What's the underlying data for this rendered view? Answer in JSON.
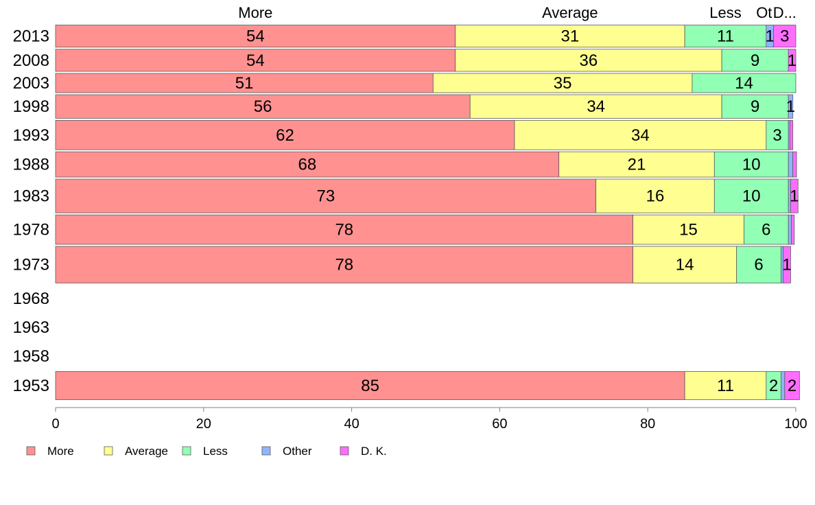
{
  "chart_data": {
    "type": "bar",
    "orientation": "horizontal",
    "stacked": true,
    "header_labels": [
      "More",
      "Average",
      "Less",
      "Ot",
      "D..."
    ],
    "categories": [
      "2013",
      "2008",
      "2003",
      "1998",
      "1993",
      "1988",
      "1983",
      "1978",
      "1973",
      "1968",
      "1963",
      "1958",
      "1953"
    ],
    "series": [
      {
        "name": "More",
        "color": "#FF9191",
        "values": [
          54,
          54,
          51,
          56,
          62,
          68,
          73,
          78,
          78,
          null,
          null,
          null,
          85
        ]
      },
      {
        "name": "Average",
        "color": "#FFFF91",
        "values": [
          31,
          36,
          35,
          34,
          34,
          21,
          16,
          15,
          14,
          null,
          null,
          null,
          11
        ]
      },
      {
        "name": "Less",
        "color": "#91FFB4",
        "values": [
          11,
          9,
          14,
          9,
          3,
          10,
          10,
          6,
          6,
          null,
          null,
          null,
          2
        ]
      },
      {
        "name": "Other",
        "color": "#91B4FF",
        "values": [
          1,
          0,
          0,
          0.6,
          0.2,
          0.6,
          0.3,
          0.4,
          0.3,
          null,
          null,
          null,
          0.5
        ]
      },
      {
        "name": "D. K.",
        "color": "#FF6DFF",
        "values": [
          3,
          1,
          0,
          0,
          0.4,
          0.5,
          1,
          0.4,
          1,
          null,
          null,
          null,
          2
        ]
      }
    ],
    "segment_labels": [
      [
        "54",
        "31",
        "11",
        "1",
        "3"
      ],
      [
        "54",
        "36",
        "9",
        "",
        "1"
      ],
      [
        "51",
        "35",
        "14",
        "",
        ""
      ],
      [
        "56",
        "34",
        "9",
        "1",
        ""
      ],
      [
        "62",
        "34",
        "3",
        "",
        ""
      ],
      [
        "68",
        "21",
        "10",
        "",
        ""
      ],
      [
        "73",
        "16",
        "10",
        "",
        "1"
      ],
      [
        "78",
        "15",
        "6",
        "",
        ""
      ],
      [
        "78",
        "14",
        "6",
        "",
        "1"
      ],
      [],
      [],
      [],
      [
        "85",
        "11",
        "2",
        "",
        "2"
      ]
    ],
    "bar_weights": [
      1.0,
      1.0,
      0.88,
      1.06,
      1.3,
      1.13,
      1.48,
      1.3,
      1.6,
      0,
      0,
      0,
      1.25
    ],
    "x_ticks": [
      "0",
      "20",
      "40",
      "60",
      "80",
      "100"
    ],
    "xlim": [
      0,
      100
    ],
    "legend": [
      "More",
      "Average",
      "Less",
      "Other",
      "D. K."
    ],
    "legend_position": "bottom-left",
    "grid": false
  }
}
